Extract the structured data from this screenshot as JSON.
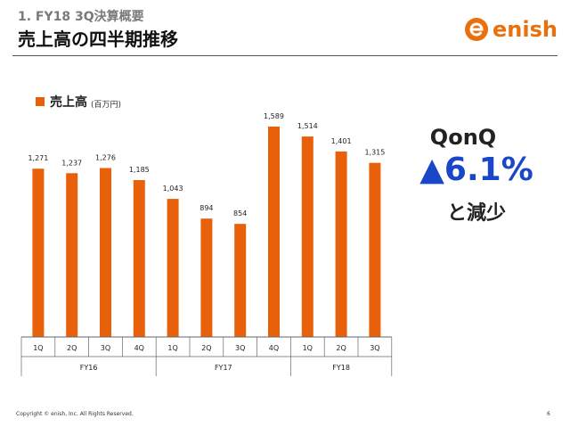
{
  "header": {
    "subtitle": "1. FY18 3Q決算概要",
    "title": "売上高の四半期推移",
    "logo_text": "enish"
  },
  "legend": {
    "label": "売上高",
    "unit": "(百万円)"
  },
  "callout": {
    "line1": "QonQ",
    "line2": "▲6.1%",
    "line3": "と減少"
  },
  "footer": {
    "copyright": "Copyright © enish, Inc. All Rights Reserved.",
    "page": "6"
  },
  "colors": {
    "bar": "#e8600a",
    "accent_blue": "#1a46c8",
    "brand_orange": "#e8700e"
  },
  "chart_data": {
    "type": "bar",
    "categories": [
      "1Q",
      "2Q",
      "3Q",
      "4Q",
      "1Q",
      "2Q",
      "3Q",
      "4Q",
      "1Q",
      "2Q",
      "3Q"
    ],
    "groups": [
      {
        "label": "FY16",
        "count": 4
      },
      {
        "label": "FY17",
        "count": 4
      },
      {
        "label": "FY18",
        "count": 3
      }
    ],
    "values": [
      1271,
      1237,
      1276,
      1185,
      1043,
      894,
      854,
      1589,
      1514,
      1401,
      1315
    ],
    "value_labels": [
      "1,271",
      "1,237",
      "1,276",
      "1,185",
      "1,043",
      "894",
      "854",
      "1,589",
      "1,514",
      "1,401",
      "1,315"
    ],
    "series_label": "売上高",
    "unit": "(百万円)",
    "ylim": [
      0,
      1589
    ],
    "grid": false,
    "legend_position": "top-left"
  }
}
